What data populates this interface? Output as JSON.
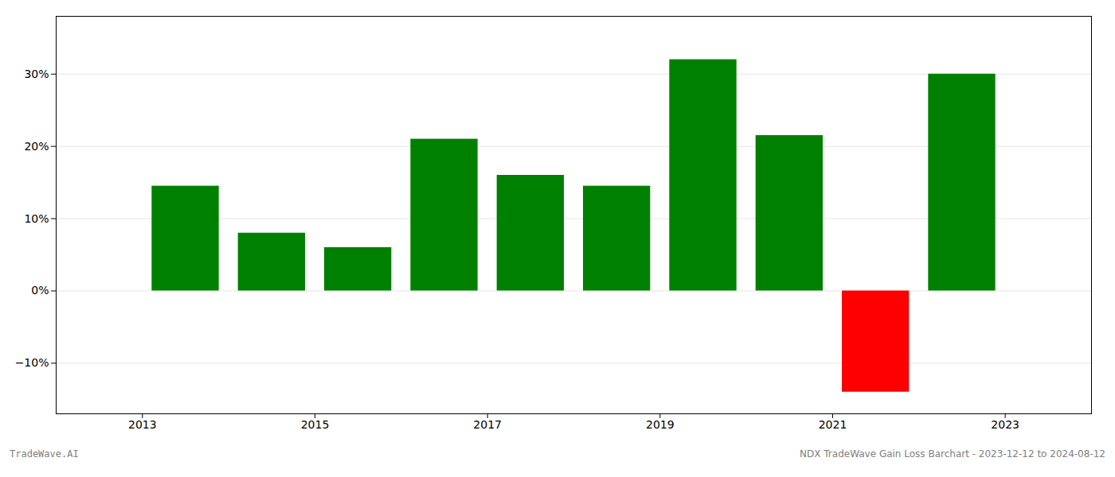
{
  "chart_data": {
    "type": "bar",
    "x": [
      2013,
      2014,
      2015,
      2016,
      2017,
      2018,
      2019,
      2020,
      2021,
      2022
    ],
    "values": [
      14.5,
      8.0,
      6.0,
      21.0,
      16.0,
      14.5,
      32.0,
      21.5,
      -14.0,
      30.0
    ],
    "colors": [
      "#008000",
      "#008000",
      "#008000",
      "#008000",
      "#008000",
      "#008000",
      "#008000",
      "#008000",
      "#ff0000",
      "#008000"
    ],
    "xlim": [
      2012,
      2024
    ],
    "xticks": [
      2013,
      2015,
      2017,
      2019,
      2021,
      2023
    ],
    "ylim": [
      -17,
      38
    ],
    "yticks": [
      {
        "value": -10,
        "label": "−10%"
      },
      {
        "value": 0,
        "label": "0%"
      },
      {
        "value": 10,
        "label": "10%"
      },
      {
        "value": 20,
        "label": "20%"
      },
      {
        "value": 30,
        "label": "30%"
      }
    ],
    "grid": true,
    "annotations": [
      "TradeWave.AI",
      "NDX TradeWave Gain Loss Barchart - 2023-12-12 to 2024-08-12"
    ]
  }
}
